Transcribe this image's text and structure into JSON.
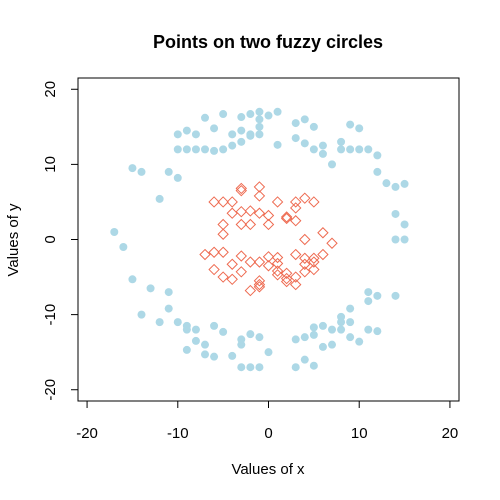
{
  "chart_data": {
    "type": "scatter",
    "title": "Points on two fuzzy circles",
    "xlabel": "Values of x",
    "ylabel": "Values of y",
    "xlim": [
      -21,
      21
    ],
    "ylim": [
      -21.5,
      21.5
    ],
    "xticks": [
      -20,
      -10,
      0,
      10,
      20
    ],
    "yticks": [
      -20,
      -10,
      0,
      10,
      20
    ],
    "grid": false,
    "colors": {
      "outer": "#add8e6",
      "inner": "#ee6a50"
    },
    "series": [
      {
        "marker": "filled-circle",
        "color": "#add8e6",
        "points": [
          [
            -17,
            1
          ],
          [
            -16,
            -1
          ],
          [
            -15,
            -5.3
          ],
          [
            -15,
            9.5
          ],
          [
            -14,
            9
          ],
          [
            -14,
            -10
          ],
          [
            -13,
            -6.5
          ],
          [
            -12,
            5.4
          ],
          [
            -12,
            -11
          ],
          [
            -11,
            9
          ],
          [
            -11,
            -7
          ],
          [
            -11,
            -9.2
          ],
          [
            -10,
            8.2
          ],
          [
            -10,
            14
          ],
          [
            -10,
            12
          ],
          [
            -10,
            -11
          ],
          [
            -9,
            12
          ],
          [
            -9,
            14.5
          ],
          [
            -9,
            -12
          ],
          [
            -9,
            -11.5
          ],
          [
            -9,
            -14.7
          ],
          [
            -8,
            12
          ],
          [
            -8,
            14
          ],
          [
            -8,
            -12
          ],
          [
            -8,
            -13.5
          ],
          [
            -7,
            16.2
          ],
          [
            -7,
            12
          ],
          [
            -7,
            -14
          ],
          [
            -7,
            -15.3
          ],
          [
            -6,
            11.8
          ],
          [
            -6,
            14.8
          ],
          [
            -6,
            -11.5
          ],
          [
            -6,
            -15.6
          ],
          [
            -5,
            12
          ],
          [
            -5,
            16.7
          ],
          [
            -5,
            -12.3
          ],
          [
            -4,
            12.5
          ],
          [
            -4,
            14
          ],
          [
            -4,
            -15.5
          ],
          [
            -3,
            16.3
          ],
          [
            -3,
            14.5
          ],
          [
            -3,
            13
          ],
          [
            -3,
            -13.3
          ],
          [
            -3,
            -14
          ],
          [
            -3,
            -17
          ],
          [
            -2,
            16.7
          ],
          [
            -2,
            14
          ],
          [
            -2,
            13.8
          ],
          [
            -2,
            -12.6
          ],
          [
            -2,
            -17
          ],
          [
            -1,
            17
          ],
          [
            -1,
            16
          ],
          [
            -1,
            15
          ],
          [
            -1,
            14
          ],
          [
            -1,
            -13
          ],
          [
            -1,
            -17
          ],
          [
            0,
            16.5
          ],
          [
            0,
            -15
          ],
          [
            1,
            12.6
          ],
          [
            1,
            17
          ],
          [
            3,
            13.5
          ],
          [
            3,
            15.5
          ],
          [
            3,
            -13.3
          ],
          [
            3,
            -17
          ],
          [
            4,
            16
          ],
          [
            4,
            12.8
          ],
          [
            4,
            -13
          ],
          [
            4,
            -16
          ],
          [
            5,
            15
          ],
          [
            5,
            12
          ],
          [
            5,
            -11.7
          ],
          [
            5,
            -12.7
          ],
          [
            5,
            -16.8
          ],
          [
            6,
            12.5
          ],
          [
            6,
            11.4
          ],
          [
            6,
            -11.5
          ],
          [
            6,
            -14.3
          ],
          [
            7,
            10
          ],
          [
            7,
            -14
          ],
          [
            7,
            -12
          ],
          [
            8,
            13
          ],
          [
            8,
            12
          ],
          [
            8,
            -12
          ],
          [
            8,
            -10.3
          ],
          [
            8,
            -11
          ],
          [
            9,
            15.3
          ],
          [
            9,
            12
          ],
          [
            9,
            -9.2
          ],
          [
            9,
            -11
          ],
          [
            9,
            -13
          ],
          [
            10,
            14.8
          ],
          [
            10,
            12
          ],
          [
            10,
            -13.6
          ],
          [
            11,
            12
          ],
          [
            11,
            -7
          ],
          [
            11,
            -8.2
          ],
          [
            11,
            -12
          ],
          [
            12,
            11.2
          ],
          [
            12,
            9
          ],
          [
            12,
            -7.5
          ],
          [
            12,
            -12.2
          ],
          [
            13,
            7.5
          ],
          [
            14,
            7
          ],
          [
            14,
            3.4
          ],
          [
            14,
            0
          ],
          [
            14,
            -7.5
          ],
          [
            15,
            7.4
          ],
          [
            15,
            2
          ],
          [
            15,
            0
          ]
        ]
      },
      {
        "marker": "open-diamond",
        "color": "#ee6a50",
        "points": [
          [
            -7,
            -2
          ],
          [
            -6,
            5
          ],
          [
            -6,
            -1.7
          ],
          [
            -6,
            -4
          ],
          [
            -5,
            5
          ],
          [
            -5,
            2
          ],
          [
            -5,
            0.7
          ],
          [
            -5,
            -1.7
          ],
          [
            -5,
            -5
          ],
          [
            -4,
            5
          ],
          [
            -4,
            -3.3
          ],
          [
            -4,
            -5.3
          ],
          [
            -3,
            6.8
          ],
          [
            -3,
            3.7
          ],
          [
            -3,
            2
          ],
          [
            -3,
            -4.3
          ],
          [
            -2,
            2
          ],
          [
            -2,
            -3
          ],
          [
            -2,
            -6.8
          ],
          [
            -1,
            7
          ],
          [
            -1,
            5.8
          ],
          [
            -1,
            3.5
          ],
          [
            -1,
            -3
          ],
          [
            -1,
            -5.5
          ],
          [
            -1,
            -6.3
          ],
          [
            0,
            3.2
          ],
          [
            0,
            -2.3
          ],
          [
            0,
            -3.5
          ],
          [
            1,
            5
          ],
          [
            1,
            -2.4
          ],
          [
            1,
            -3.2
          ],
          [
            1,
            -4.7
          ],
          [
            2,
            3
          ],
          [
            2,
            -4.5
          ],
          [
            2,
            -5.2
          ],
          [
            3,
            5
          ],
          [
            3,
            2.5
          ],
          [
            3,
            -2
          ],
          [
            3,
            -6
          ],
          [
            4,
            5.5
          ],
          [
            4,
            0
          ],
          [
            4,
            -3.3
          ],
          [
            4,
            -4.3
          ],
          [
            5,
            5
          ],
          [
            5,
            -2.5
          ],
          [
            5,
            -4
          ],
          [
            6,
            0.9
          ],
          [
            6,
            -2
          ],
          [
            7,
            -0.5
          ],
          [
            -4,
            3.5
          ],
          [
            -3,
            6.5
          ],
          [
            -2,
            3.8
          ],
          [
            -3,
            -2.2
          ],
          [
            -1,
            -6
          ],
          [
            0,
            2
          ],
          [
            1,
            -4.2
          ],
          [
            2,
            2.8
          ],
          [
            2,
            -5.6
          ],
          [
            3,
            4.2
          ],
          [
            3,
            -5
          ],
          [
            4,
            -2.5
          ],
          [
            5,
            -3
          ]
        ]
      }
    ]
  }
}
